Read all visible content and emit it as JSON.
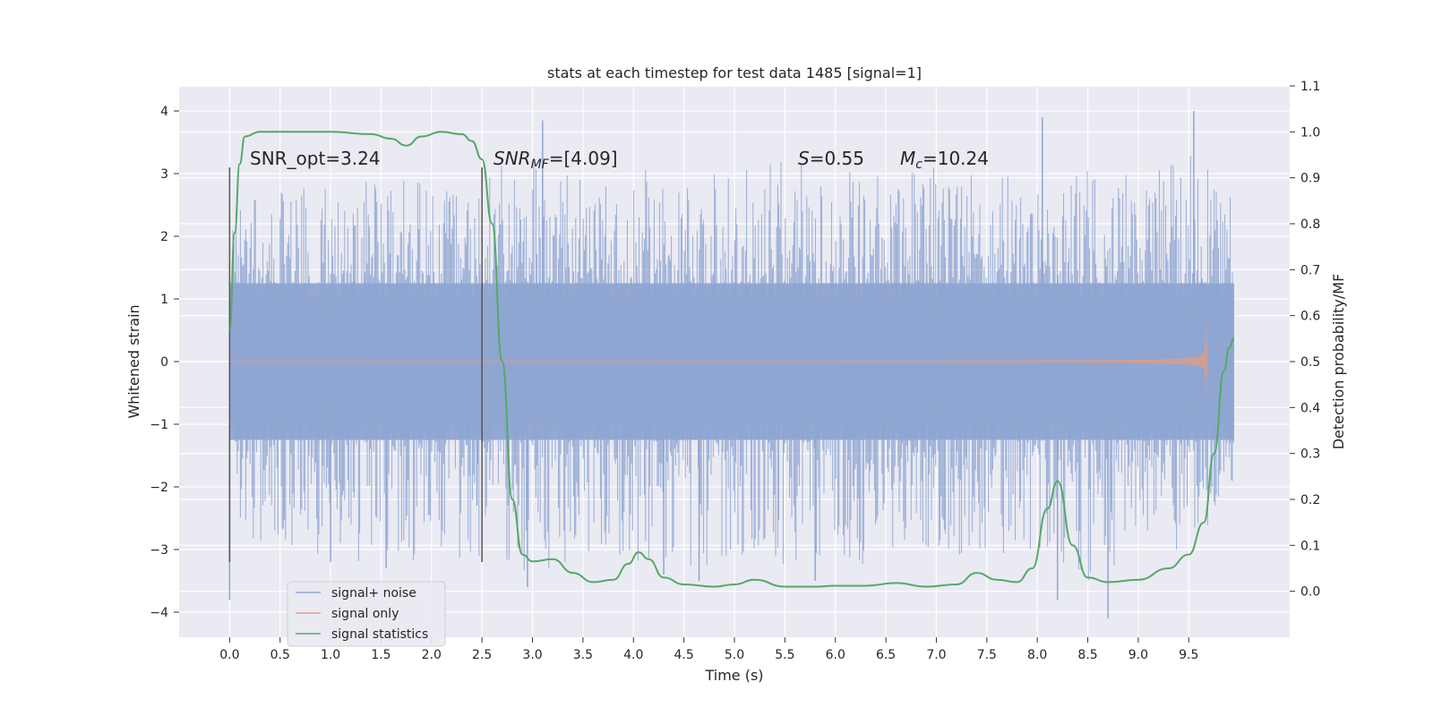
{
  "chart_data": {
    "type": "line",
    "title": "stats at each timestep for test data 1485 [signal=1]",
    "xlabel": "Time (s)",
    "ylabel": "Whitened strain",
    "y2label": "Detection probability/MF",
    "xlim": [
      -0.5,
      10.5
    ],
    "ylim": [
      -4.4,
      4.4
    ],
    "y2lim": [
      -0.1,
      1.1
    ],
    "x_ticks": [
      "0.0",
      "0.5",
      "1.0",
      "1.5",
      "2.0",
      "2.5",
      "3.0",
      "3.5",
      "4.0",
      "4.5",
      "5.0",
      "5.5",
      "6.0",
      "6.5",
      "7.0",
      "7.5",
      "8.0",
      "8.5",
      "9.0",
      "9.5"
    ],
    "y_ticks": [
      "4",
      "3",
      "2",
      "1",
      "0",
      "−1",
      "−2",
      "−3",
      "−4"
    ],
    "y2_ticks": [
      "1.1",
      "1.0",
      "0.9",
      "0.8",
      "0.7",
      "0.6",
      "0.5",
      "0.4",
      "0.3",
      "0.2",
      "0.1",
      "0.0"
    ],
    "grid": true,
    "legend_position": "lower-left",
    "annotations": {
      "snr_opt": "SNR_opt=3.24",
      "snr_mf_main": "SNR",
      "snr_mf_sub": "MF",
      "snr_mf_val": "=[4.09]",
      "s_main": "S",
      "s_val": "=0.55",
      "mc_main": "M",
      "mc_sub": "c",
      "mc_val": "=10.24"
    },
    "vlines_x": [
      0.0,
      2.5
    ],
    "vline_range": [
      -3.2,
      3.1
    ],
    "series": [
      {
        "name": "signal+ noise",
        "color": "#8fa5d2",
        "envelope": {
          "x": [
            0.0,
            0.5,
            1.0,
            1.5,
            2.0,
            2.5,
            3.0,
            3.5,
            4.0,
            4.5,
            5.0,
            5.5,
            6.0,
            6.5,
            7.0,
            7.5,
            8.0,
            8.5,
            9.0,
            9.5,
            9.95
          ],
          "upper": [
            2.4,
            2.9,
            2.8,
            3.0,
            3.0,
            3.1,
            3.2,
            2.9,
            3.1,
            3.0,
            3.1,
            3.2,
            3.1,
            3.0,
            3.1,
            3.0,
            3.2,
            3.1,
            3.0,
            3.4,
            2.6
          ],
          "lower": [
            -2.9,
            -3.2,
            -3.1,
            -3.3,
            -3.2,
            -3.1,
            -3.4,
            -3.2,
            -3.2,
            -3.3,
            -3.2,
            -3.3,
            -3.2,
            -3.3,
            -3.2,
            -3.1,
            -3.1,
            -3.5,
            -3.2,
            -3.1,
            -2.0
          ],
          "outliers": [
            [
              0.0,
              -3.8
            ],
            [
              1.0,
              -3.2
            ],
            [
              1.55,
              -3.3
            ],
            [
              2.45,
              -2.3
            ],
            [
              2.95,
              -3.6
            ],
            [
              3.1,
              3.85
            ],
            [
              4.3,
              -3.4
            ],
            [
              4.65,
              -3.5
            ],
            [
              5.8,
              -3.5
            ],
            [
              8.05,
              3.9
            ],
            [
              8.2,
              -3.8
            ],
            [
              8.7,
              -4.1
            ],
            [
              9.55,
              4.0
            ]
          ]
        }
      },
      {
        "name": "signal only",
        "color": "#dd9e86",
        "chirp": {
          "t_start": 0.0,
          "t_merge": 9.68,
          "amp_peak": 0.6,
          "amp_end": 0.45
        }
      },
      {
        "name": "signal statistics",
        "color": "#55a868",
        "x": [
          0.0,
          0.05,
          0.1,
          0.15,
          0.3,
          0.6,
          1.0,
          1.4,
          1.6,
          1.75,
          1.9,
          2.1,
          2.3,
          2.4,
          2.5,
          2.6,
          2.7,
          2.8,
          2.9,
          3.0,
          3.2,
          3.4,
          3.6,
          3.8,
          3.95,
          4.05,
          4.15,
          4.3,
          4.5,
          4.8,
          5.0,
          5.2,
          5.5,
          5.8,
          6.0,
          6.3,
          6.6,
          6.9,
          7.2,
          7.4,
          7.6,
          7.8,
          7.95,
          8.1,
          8.2,
          8.35,
          8.5,
          8.7,
          9.0,
          9.3,
          9.5,
          9.65,
          9.75,
          9.85,
          9.9,
          9.95
        ],
        "values": [
          0.57,
          0.78,
          0.93,
          0.99,
          1.0,
          1.0,
          1.0,
          0.995,
          0.985,
          0.97,
          0.99,
          1.0,
          0.995,
          0.98,
          0.94,
          0.8,
          0.5,
          0.2,
          0.08,
          0.065,
          0.07,
          0.04,
          0.02,
          0.025,
          0.06,
          0.085,
          0.07,
          0.03,
          0.015,
          0.01,
          0.015,
          0.025,
          0.01,
          0.01,
          0.012,
          0.012,
          0.018,
          0.01,
          0.015,
          0.04,
          0.025,
          0.02,
          0.05,
          0.18,
          0.24,
          0.1,
          0.03,
          0.02,
          0.025,
          0.05,
          0.08,
          0.15,
          0.3,
          0.48,
          0.53,
          0.55
        ]
      }
    ]
  }
}
